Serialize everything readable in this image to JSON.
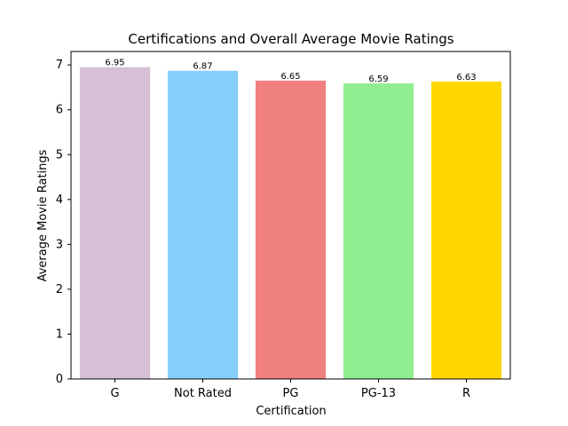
{
  "chart_data": {
    "type": "bar",
    "title": "Certifications and Overall Average Movie Ratings",
    "xlabel": "Certification",
    "ylabel": "Average Movie Ratings",
    "categories": [
      "G",
      "Not Rated",
      "PG",
      "PG-13",
      "R"
    ],
    "values": [
      6.95,
      6.87,
      6.65,
      6.59,
      6.63
    ],
    "data_labels": [
      "6.95",
      "6.87",
      "6.65",
      "6.59",
      "6.63"
    ],
    "colors": [
      "#d8bfd8",
      "#87cefa",
      "#f08080",
      "#90ee90",
      "#ffd700"
    ],
    "ylim": [
      0,
      7.3
    ],
    "yticks": [
      0,
      1,
      2,
      3,
      4,
      5,
      6,
      7
    ],
    "grid": false,
    "legend": "none"
  }
}
